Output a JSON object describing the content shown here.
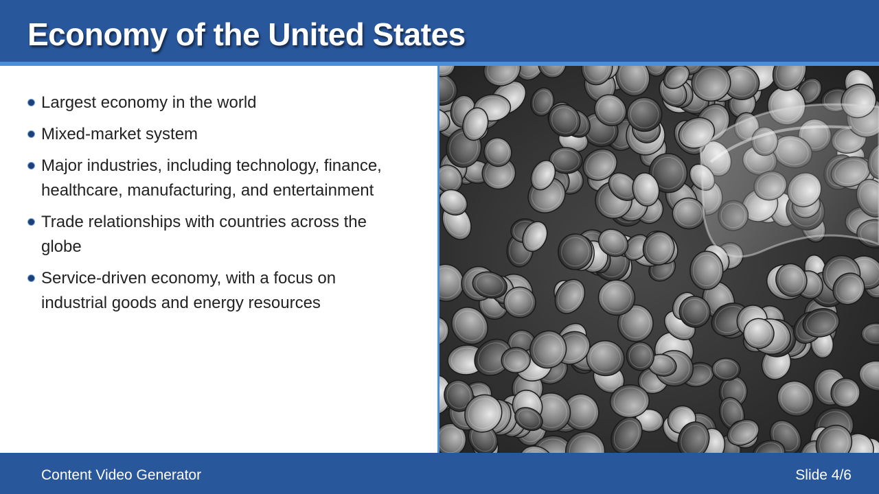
{
  "slide": {
    "title": "Economy of the United States",
    "bullets": [
      {
        "text": "Largest economy in the world"
      },
      {
        "text": "Mixed-market system"
      },
      {
        "text": "Major industries, including technology, finance, healthcare, manufacturing, and entertainment"
      },
      {
        "text": "Trade relationships with countries across the globe"
      },
      {
        "text": "Service-driven economy, with a focus on industrial goods and energy resources"
      }
    ],
    "image": {
      "subject": "coins-photo"
    }
  },
  "footer": {
    "app_name": "Content Video Generator",
    "slide_counter": "Slide 4/6"
  },
  "colors": {
    "header": "#29579c",
    "accent": "#4a8fd9",
    "bullet_dot": "#1f3f78",
    "text": "#222222"
  }
}
